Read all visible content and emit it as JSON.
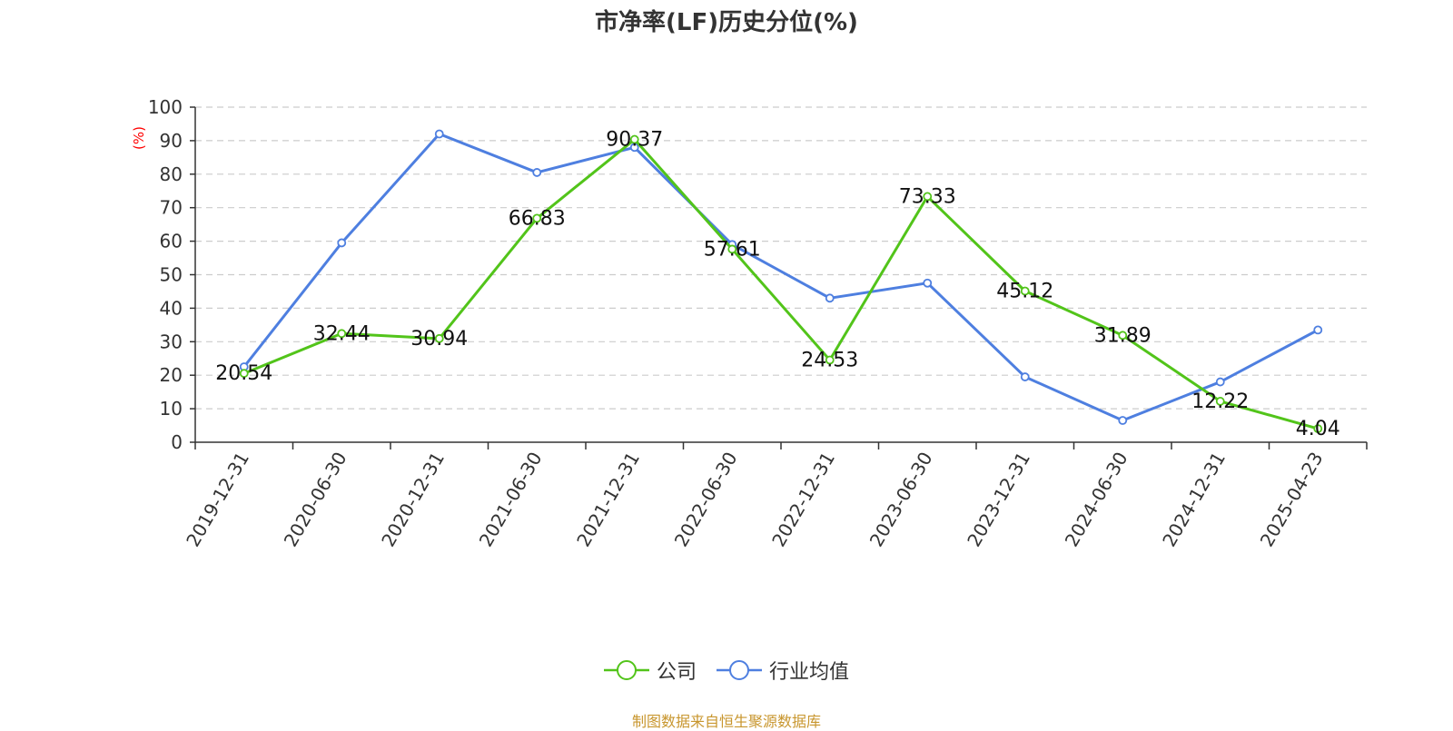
{
  "chart_data": {
    "type": "line",
    "title": "市净率(LF)历史分位(%)",
    "ylabel": "(%)",
    "xlabel": "",
    "ylim": [
      0,
      100
    ],
    "y_ticks": [
      0,
      10,
      20,
      30,
      40,
      50,
      60,
      70,
      80,
      90,
      100
    ],
    "grid": true,
    "legend_position": "bottom",
    "categories": [
      "2019-12-31",
      "2020-06-30",
      "2020-12-31",
      "2021-06-30",
      "2021-12-31",
      "2022-06-30",
      "2022-12-31",
      "2023-06-30",
      "2023-12-31",
      "2024-06-30",
      "2024-12-31",
      "2025-04-23"
    ],
    "series": [
      {
        "name": "公司",
        "color": "#52c41a",
        "values": [
          20.54,
          32.44,
          30.94,
          66.83,
          90.37,
          57.61,
          24.53,
          73.33,
          45.12,
          31.89,
          12.22,
          4.04
        ],
        "labels": [
          "20.54",
          "32.44",
          "30.94",
          "66.83",
          "90.37",
          "57.61",
          "24.53",
          "73.33",
          "45.12",
          "31.89",
          "12.22",
          "4.04"
        ]
      },
      {
        "name": "行业均值",
        "color": "#4e7fe0",
        "values": [
          22.5,
          59.5,
          92,
          80.5,
          88,
          59,
          43,
          47.5,
          19.5,
          6.5,
          18,
          33.5
        ]
      }
    ]
  },
  "source_text": "制图数据来自恒生聚源数据库"
}
